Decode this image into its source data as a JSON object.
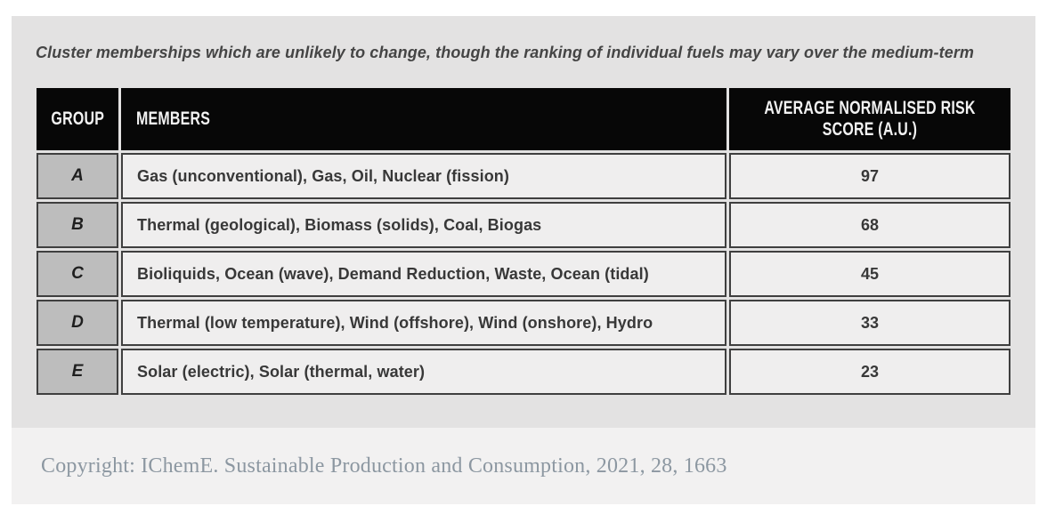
{
  "figure": {
    "caption": "Cluster memberships which are unlikely to change, though the ranking of individual fuels may vary over the medium-term"
  },
  "table": {
    "headers": {
      "group": "GROUP",
      "members": "MEMBERS",
      "score": "AVERAGE NORMALISED RISK SCORE (A.U.)"
    },
    "rows": [
      {
        "group": "A",
        "members": "Gas (unconventional), Gas, Oil, Nuclear (fission)",
        "score": "97"
      },
      {
        "group": "B",
        "members": "Thermal (geological), Biomass (solids), Coal, Biogas",
        "score": "68"
      },
      {
        "group": "C",
        "members": "Bioliquids, Ocean (wave), Demand Reduction, Waste, Ocean (tidal)",
        "score": "45"
      },
      {
        "group": "D",
        "members": "Thermal (low temperature), Wind (offshore), Wind (onshore), Hydro",
        "score": "33"
      },
      {
        "group": "E",
        "members": "Solar (electric), Solar (thermal, water)",
        "score": "23"
      }
    ]
  },
  "footer": {
    "copyright": "Copyright: IChemE. Sustainable Production and Consumption, 2021, 28, 1663"
  },
  "colors": {
    "page_bg": "#ffffff",
    "panel_bg": "#e3e2e2",
    "row_bg": "#efeeee",
    "group_cell_bg": "#bdbdbd",
    "header_bg": "#070707",
    "header_text": "#f2f2f2",
    "cell_border": "#3f3f3f",
    "caption_text": "#454545",
    "body_text": "#383838",
    "copyright_panel_bg": "#f2f1f1",
    "copyright_text": "#8c97a1"
  },
  "chart_data": {
    "type": "table",
    "title": "Cluster memberships which are unlikely to change, though the ranking of individual fuels may vary over the medium-term",
    "columns": [
      "GROUP",
      "MEMBERS",
      "AVERAGE NORMALISED RISK SCORE (A.U.)"
    ],
    "rows": [
      [
        "A",
        "Gas (unconventional), Gas, Oil, Nuclear (fission)",
        97
      ],
      [
        "B",
        "Thermal (geological), Biomass (solids), Coal, Biogas",
        68
      ],
      [
        "C",
        "Bioliquids, Ocean (wave), Demand Reduction, Waste, Ocean (tidal)",
        45
      ],
      [
        "D",
        "Thermal (low temperature), Wind (offshore), Wind (onshore), Hydro",
        33
      ],
      [
        "E",
        "Solar (electric), Solar (thermal, water)",
        23
      ]
    ],
    "source": "Copyright: IChemE. Sustainable Production and Consumption, 2021, 28, 1663"
  }
}
